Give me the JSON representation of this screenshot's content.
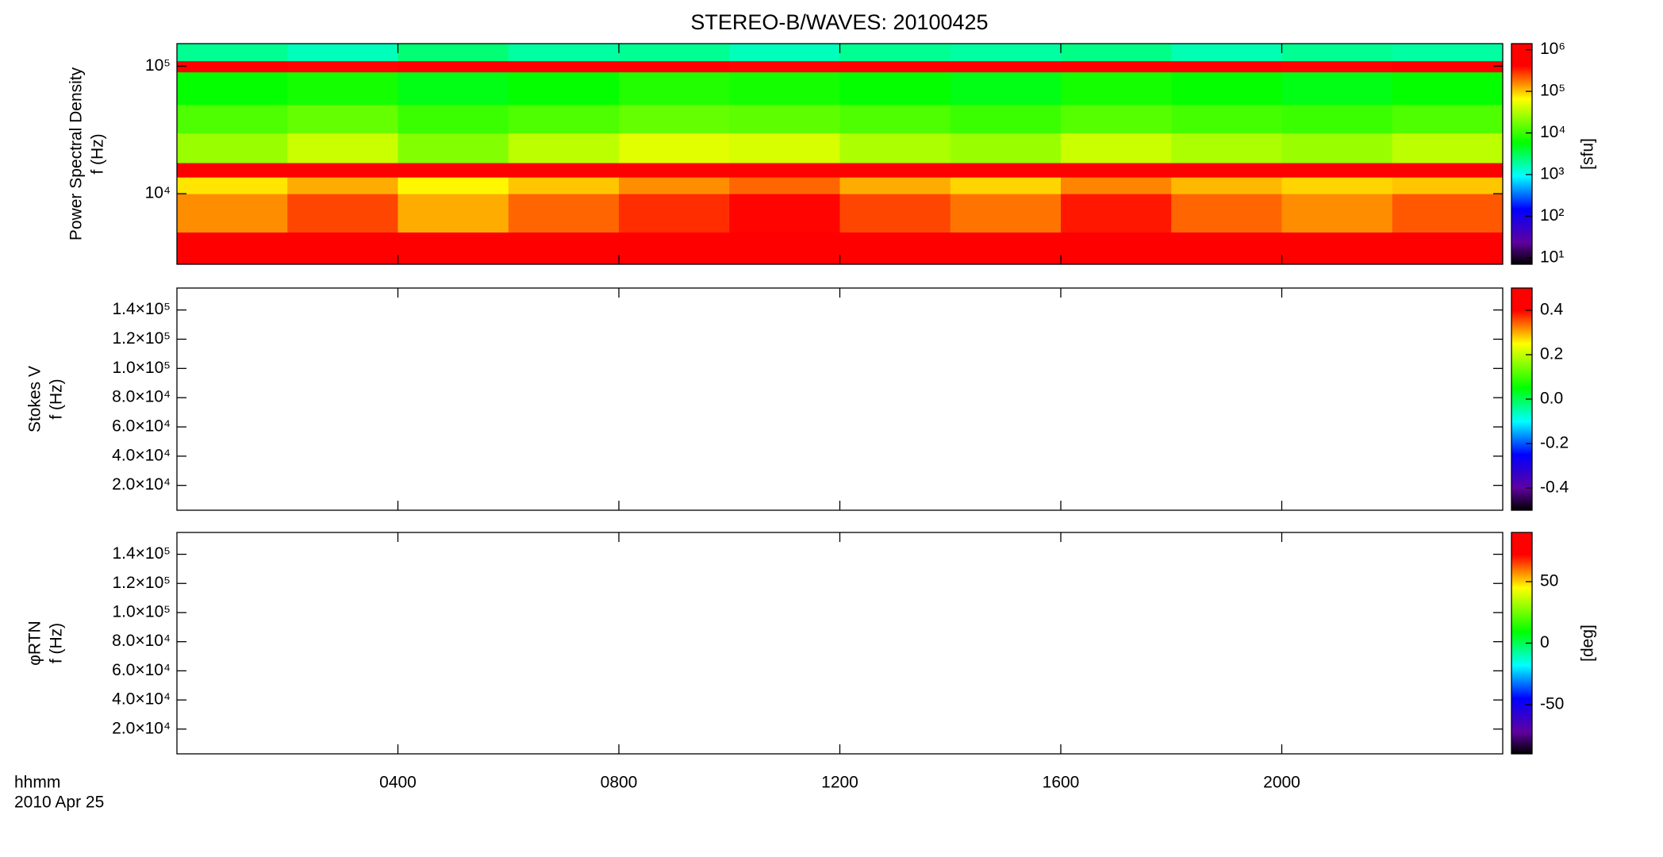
{
  "chart_data": [
    {
      "type": "heatmap",
      "title": "STEREO-B/WAVES: 20100425",
      "ylabel": [
        "Power Spectral Density",
        "f (Hz)"
      ],
      "ylog": true,
      "ylim": [
        2800,
        150000
      ],
      "yticks": [
        {
          "value": 10000,
          "label": "10⁴"
        },
        {
          "value": 100000,
          "label": "10⁵"
        }
      ],
      "xlim": [
        0,
        24
      ],
      "x_edges": [
        0,
        2,
        4,
        6,
        8,
        10,
        12,
        14,
        16,
        18,
        20,
        22,
        24
      ],
      "y_edges": [
        2800,
        5000,
        10000,
        13500,
        17500,
        30000,
        50000,
        90000,
        110000,
        150000
      ],
      "z": [
        [
          700000,
          900000,
          600000,
          800000,
          1000000,
          1000000,
          900000,
          700000,
          1000000,
          800000,
          600000,
          900000
        ],
        [
          150000,
          250000,
          120000,
          200000,
          300000,
          400000,
          250000,
          180000,
          350000,
          200000,
          150000,
          220000
        ],
        [
          80000,
          120000,
          70000,
          100000,
          150000,
          200000,
          120000,
          90000,
          160000,
          110000,
          90000,
          100000
        ],
        [
          1000000,
          1100000,
          900000,
          1000000,
          1100000,
          1000000,
          1000000,
          900000,
          1000000,
          1000000,
          900000,
          1000000
        ],
        [
          25000,
          40000,
          20000,
          35000,
          50000,
          45000,
          30000,
          25000,
          40000,
          30000,
          25000,
          35000
        ],
        [
          12000,
          15000,
          10000,
          12000,
          15000,
          14000,
          12000,
          10000,
          13000,
          11000,
          10000,
          12000
        ],
        [
          6000,
          7000,
          5000,
          6000,
          8000,
          7000,
          6000,
          5000,
          7000,
          6000,
          5000,
          6000
        ],
        [
          500000,
          400000,
          600000,
          500000,
          700000,
          400000,
          500000,
          450000,
          600000,
          500000,
          400000,
          500000
        ],
        [
          2000,
          1500,
          2500,
          1800,
          2000,
          1500,
          2000,
          1800,
          2200,
          1600,
          2000,
          1800
        ]
      ],
      "colorbar": {
        "label": "[sfu]",
        "log": true,
        "zlim": [
          7,
          1400000
        ],
        "ticks": [
          {
            "value": 10,
            "label": "10¹"
          },
          {
            "value": 100,
            "label": "10²"
          },
          {
            "value": 1000,
            "label": "10³"
          },
          {
            "value": 10000,
            "label": "10⁴"
          },
          {
            "value": 100000,
            "label": "10⁵"
          },
          {
            "value": 1000000,
            "label": "10⁶"
          }
        ]
      }
    },
    {
      "type": "heatmap",
      "ylabel": [
        "Stokes V",
        "f (Hz)"
      ],
      "ylim": [
        3000,
        155000
      ],
      "xlim": [
        0,
        24
      ],
      "yticks": [
        {
          "value": 20000,
          "label": "2.0×10⁴"
        },
        {
          "value": 40000,
          "label": "4.0×10⁴"
        },
        {
          "value": 60000,
          "label": "6.0×10⁴"
        },
        {
          "value": 80000,
          "label": "8.0×10⁴"
        },
        {
          "value": 100000,
          "label": "1.0×10⁵"
        },
        {
          "value": 120000,
          "label": "1.2×10⁵"
        },
        {
          "value": 140000,
          "label": "1.4×10⁵"
        }
      ],
      "colorbar": {
        "zlim": [
          -0.5,
          0.5
        ],
        "ticks": [
          {
            "value": -0.4,
            "label": "-0.4"
          },
          {
            "value": -0.2,
            "label": "-0.2"
          },
          {
            "value": 0,
            "label": "0.0"
          },
          {
            "value": 0.2,
            "label": "0.2"
          },
          {
            "value": 0.4,
            "label": "0.4"
          }
        ]
      }
    },
    {
      "type": "heatmap",
      "ylabel": [
        "φRTN",
        "f (Hz)"
      ],
      "ylim": [
        3000,
        155000
      ],
      "xlim": [
        0,
        24
      ],
      "yticks": [
        {
          "value": 20000,
          "label": "2.0×10⁴"
        },
        {
          "value": 40000,
          "label": "4.0×10⁴"
        },
        {
          "value": 60000,
          "label": "6.0×10⁴"
        },
        {
          "value": 80000,
          "label": "8.0×10⁴"
        },
        {
          "value": 100000,
          "label": "1.0×10⁵"
        },
        {
          "value": 120000,
          "label": "1.2×10⁵"
        },
        {
          "value": 140000,
          "label": "1.4×10⁵"
        }
      ],
      "xticks": [
        {
          "value": 4,
          "label": "0400"
        },
        {
          "value": 8,
          "label": "0800"
        },
        {
          "value": 12,
          "label": "1200"
        },
        {
          "value": 16,
          "label": "1600"
        },
        {
          "value": 20,
          "label": "2000"
        }
      ],
      "x_label": [
        "hhmm",
        "2010 Apr 25"
      ],
      "colorbar": {
        "label": "[deg]",
        "zlim": [
          -90,
          90
        ],
        "ticks": [
          -50,
          0,
          50
        ]
      }
    }
  ]
}
